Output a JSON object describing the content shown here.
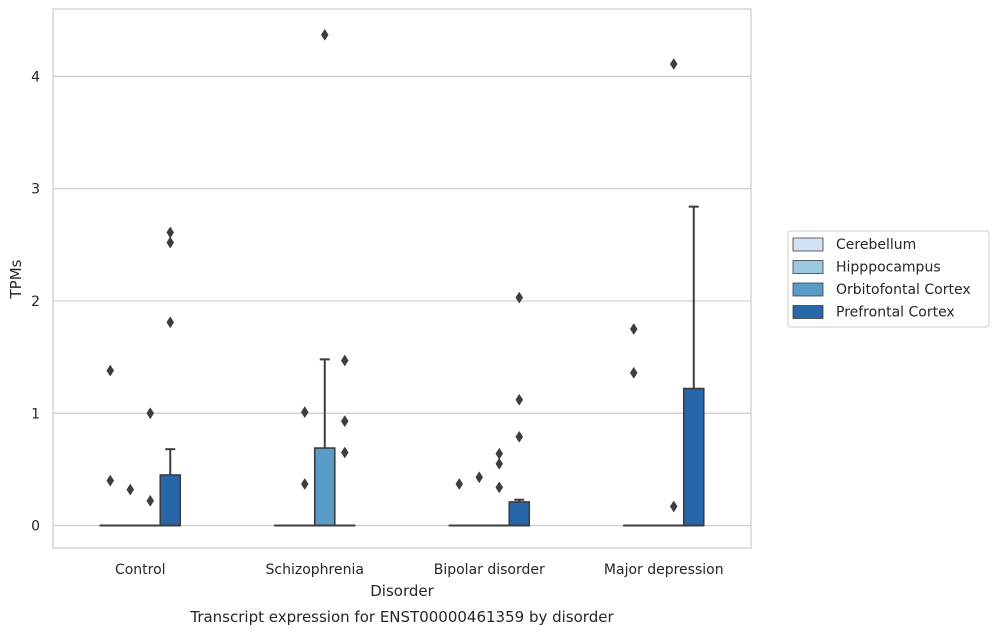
{
  "chart_data": {
    "type": "box",
    "title": "",
    "caption": "Transcript expression for ENST00000461359 by disorder",
    "xlabel": "Disorder",
    "ylabel": "TPMs",
    "ylim": [
      -0.2,
      4.6
    ],
    "yticks": [
      0,
      1,
      2,
      3,
      4
    ],
    "categories": [
      "Control",
      "Schizophrenia",
      "Bipolar disorder",
      "Major depression"
    ],
    "grid": "horizontal",
    "legend_position": "right",
    "series": [
      {
        "name": "Cerebellum",
        "color": "#d1e3f3",
        "boxes": [
          {
            "q1": 0,
            "median": 0,
            "q3": 0,
            "whisker_low": 0,
            "whisker_high": 0,
            "outliers": [
              1.38,
              0.4
            ]
          },
          {
            "q1": 0,
            "median": 0,
            "q3": 0,
            "whisker_low": 0,
            "whisker_high": 0,
            "outliers": []
          },
          {
            "q1": 0,
            "median": 0,
            "q3": 0,
            "whisker_low": 0,
            "whisker_high": 0,
            "outliers": [
              0.37
            ]
          },
          {
            "q1": 0,
            "median": 0,
            "q3": 0,
            "whisker_low": 0,
            "whisker_high": 0,
            "outliers": [
              1.75,
              1.36
            ]
          }
        ]
      },
      {
        "name": "Hipppocampus",
        "color": "#9ac8e0",
        "boxes": [
          {
            "q1": 0,
            "median": 0,
            "q3": 0,
            "whisker_low": 0,
            "whisker_high": 0,
            "outliers": [
              0.32
            ]
          },
          {
            "q1": 0,
            "median": 0,
            "q3": 0,
            "whisker_low": 0,
            "whisker_high": 0,
            "outliers": [
              1.01,
              0.37
            ]
          },
          {
            "q1": 0,
            "median": 0,
            "q3": 0,
            "whisker_low": 0,
            "whisker_high": 0,
            "outliers": [
              0.43
            ]
          },
          {
            "q1": 0,
            "median": 0,
            "q3": 0,
            "whisker_low": 0,
            "whisker_high": 0,
            "outliers": []
          }
        ]
      },
      {
        "name": "Orbitofontal Cortex",
        "color": "#5a9cc8",
        "boxes": [
          {
            "q1": 0,
            "median": 0,
            "q3": 0,
            "whisker_low": 0,
            "whisker_high": 0,
            "outliers": [
              1.0,
              0.22
            ]
          },
          {
            "q1": 0,
            "median": 0,
            "q3": 0.69,
            "whisker_low": 0,
            "whisker_high": 1.48,
            "outliers": [
              4.37
            ]
          },
          {
            "q1": 0,
            "median": 0,
            "q3": 0,
            "whisker_low": 0,
            "whisker_high": 0,
            "outliers": [
              0.64,
              0.55,
              0.34
            ]
          },
          {
            "q1": 0,
            "median": 0,
            "q3": 0,
            "whisker_low": 0,
            "whisker_high": 0,
            "outliers": [
              4.11,
              0.17
            ]
          }
        ]
      },
      {
        "name": "Prefrontal Cortex",
        "color": "#2766a8",
        "boxes": [
          {
            "q1": 0,
            "median": 0,
            "q3": 0.45,
            "whisker_low": 0,
            "whisker_high": 0.68,
            "outliers": [
              2.61,
              2.52,
              1.81
            ]
          },
          {
            "q1": 0,
            "median": 0,
            "q3": 0,
            "whisker_low": 0,
            "whisker_high": 0,
            "outliers": [
              1.47,
              0.93,
              0.65
            ]
          },
          {
            "q1": 0,
            "median": 0,
            "q3": 0.21,
            "whisker_low": 0,
            "whisker_high": 0.23,
            "outliers": [
              2.03,
              1.12,
              0.79
            ]
          },
          {
            "q1": 0,
            "median": 0,
            "q3": 1.22,
            "whisker_low": 0,
            "whisker_high": 2.84,
            "outliers": []
          }
        ]
      }
    ]
  }
}
